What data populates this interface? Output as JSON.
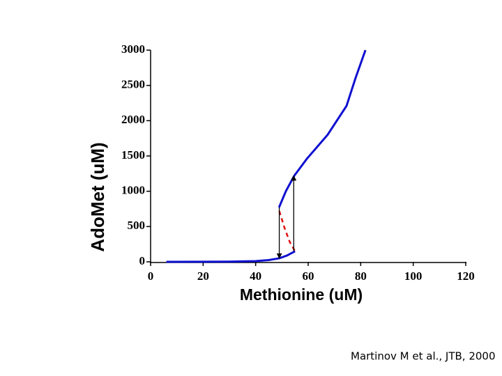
{
  "chart_data": {
    "type": "line",
    "xlabel": "Methionine (uM)",
    "ylabel": "AdoMet (uM)",
    "xlim": [
      0,
      120
    ],
    "xticks": [
      0,
      20,
      40,
      60,
      80,
      100,
      120
    ],
    "ylim": [
      0,
      3000
    ],
    "yticks": [
      0,
      500,
      1000,
      1500,
      2000,
      2500,
      3000
    ],
    "series": [
      {
        "color": "#1010d0",
        "dash": false,
        "x": [
          6,
          20,
          30,
          40,
          45,
          49,
          52,
          55
        ],
        "values": [
          0,
          1,
          3,
          10,
          25,
          50,
          90,
          150
        ]
      },
      {
        "color": "#e01010",
        "dash": true,
        "x": [
          49,
          51,
          53,
          55
        ],
        "values": [
          720,
          480,
          280,
          150
        ]
      },
      {
        "color": "#1010d0",
        "dash": false,
        "x": [
          48.9,
          51.5,
          54.7,
          59.5,
          67.4,
          74.6,
          78,
          81.8
        ],
        "values": [
          770,
          1000,
          1220,
          1460,
          1800,
          2210,
          2600,
          3000
        ]
      }
    ],
    "arrows": [
      {
        "x": 49,
        "y": [
          770,
          50
        ]
      },
      {
        "x": 54.5,
        "y": [
          150,
          1220
        ]
      }
    ],
    "source": "Martinov M et al., JTB, 2000"
  }
}
